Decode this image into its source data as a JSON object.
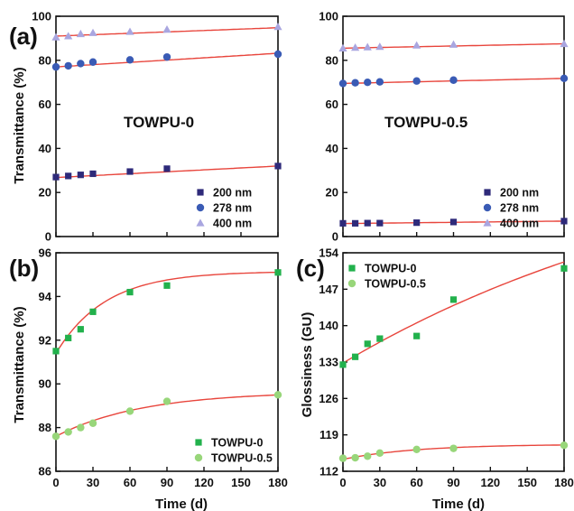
{
  "colors": {
    "fit": "#e8453c",
    "s200": "#2e2a7a",
    "s278": "#3a5bb5",
    "s400": "#a9a6e0",
    "g0": "#22b14c",
    "g05": "#98d67a",
    "axis": "#111111"
  },
  "chart_data": [
    {
      "panel": "(a)",
      "type": "scatter",
      "title": "TOWPU-0",
      "xlabel": "",
      "ylabel": "Transmittance (%)",
      "xlim": [
        0,
        180
      ],
      "ylim": [
        0,
        100
      ],
      "yticks": [
        0,
        20,
        40,
        60,
        80,
        100
      ],
      "legend_position": "bottom-right",
      "series": [
        {
          "name": "200 nm",
          "marker": "square",
          "x": [
            0,
            10,
            20,
            30,
            60,
            90,
            180
          ],
          "values": [
            27.0,
            27.5,
            28.0,
            28.5,
            29.5,
            30.8,
            32.0
          ],
          "fit": [
            26.8,
            32.0
          ]
        },
        {
          "name": "278 nm",
          "marker": "circle",
          "x": [
            0,
            10,
            20,
            30,
            60,
            90,
            180
          ],
          "values": [
            77.0,
            77.5,
            78.5,
            79.2,
            80.2,
            81.5,
            82.8
          ],
          "fit": [
            77.0,
            83.2
          ]
        },
        {
          "name": "400 nm",
          "marker": "triangle",
          "x": [
            0,
            10,
            20,
            30,
            60,
            90,
            180
          ],
          "values": [
            90.5,
            91.0,
            92.0,
            92.5,
            93.0,
            94.0,
            95.2
          ],
          "fit": [
            91.0,
            94.8
          ]
        }
      ]
    },
    {
      "panel": "",
      "type": "scatter",
      "title": "TOWPU-0.5",
      "xlabel": "",
      "ylabel": "",
      "xlim": [
        0,
        180
      ],
      "ylim": [
        0,
        100
      ],
      "yticks": [
        0,
        20,
        40,
        60,
        80,
        100
      ],
      "legend_position": "bottom-right",
      "series": [
        {
          "name": "200 nm",
          "marker": "square",
          "x": [
            0,
            10,
            20,
            30,
            60,
            90,
            180
          ],
          "values": [
            6.0,
            6.0,
            6.1,
            6.1,
            6.3,
            6.6,
            7.0
          ],
          "fit": [
            5.9,
            7.0
          ]
        },
        {
          "name": "278 nm",
          "marker": "circle",
          "x": [
            0,
            10,
            20,
            30,
            60,
            90,
            180
          ],
          "values": [
            69.5,
            69.8,
            70.0,
            70.2,
            70.6,
            71.0,
            71.8
          ],
          "fit": [
            69.5,
            71.8
          ]
        },
        {
          "name": "400 nm",
          "marker": "triangle",
          "x": [
            0,
            10,
            20,
            30,
            60,
            90,
            180
          ],
          "values": [
            85.5,
            85.8,
            86.0,
            86.2,
            86.8,
            87.2,
            87.5
          ],
          "fit": [
            85.5,
            87.5
          ]
        }
      ]
    },
    {
      "panel": "(b)",
      "type": "scatter",
      "title": "",
      "xlabel": "Time (d)",
      "ylabel": "Transmittance (%)",
      "xlim": [
        0,
        180
      ],
      "ylim": [
        86,
        96
      ],
      "xticks": [
        0,
        30,
        60,
        90,
        120,
        150,
        180
      ],
      "yticks": [
        86,
        88,
        90,
        92,
        94,
        96
      ],
      "legend_position": "bottom-right",
      "series": [
        {
          "name": "TOWPU-0",
          "marker": "square",
          "x": [
            0,
            10,
            20,
            30,
            60,
            90,
            180
          ],
          "values": [
            91.5,
            92.1,
            92.5,
            93.3,
            94.2,
            94.5,
            95.1
          ],
          "fit_exp": {
            "start": 91.4,
            "end": 95.15,
            "tau": 40
          }
        },
        {
          "name": "TOWPU-0.5",
          "marker": "circle",
          "x": [
            0,
            10,
            20,
            30,
            60,
            90,
            180
          ],
          "values": [
            87.6,
            87.8,
            88.0,
            88.2,
            88.75,
            89.2,
            89.5
          ],
          "fit_exp": {
            "start": 87.6,
            "end": 89.65,
            "tau": 70
          }
        }
      ]
    },
    {
      "panel": "(c)",
      "type": "scatter",
      "title": "",
      "xlabel": "Time (d)",
      "ylabel": "Glossiness (GU)",
      "xlim": [
        0,
        180
      ],
      "ylim": [
        112,
        154
      ],
      "xticks": [
        0,
        30,
        60,
        90,
        120,
        150,
        180
      ],
      "yticks": [
        112,
        119,
        126,
        133,
        140,
        147,
        154
      ],
      "legend_position": "top-left",
      "series": [
        {
          "name": "TOWPU-0",
          "marker": "square",
          "x": [
            0,
            10,
            20,
            30,
            60,
            90,
            180
          ],
          "values": [
            132.5,
            134.0,
            136.5,
            137.5,
            138.0,
            145.0,
            151.0
          ],
          "fit_exp": {
            "start": 132.8,
            "end": 178.0,
            "tau": 320
          }
        },
        {
          "name": "TOWPU-0.5",
          "marker": "circle",
          "x": [
            0,
            10,
            20,
            30,
            60,
            90,
            180
          ],
          "values": [
            114.5,
            114.6,
            114.9,
            115.5,
            116.2,
            116.4,
            117.0
          ],
          "fit_exp": {
            "start": 114.3,
            "end": 117.2,
            "tau": 60
          }
        }
      ]
    }
  ]
}
